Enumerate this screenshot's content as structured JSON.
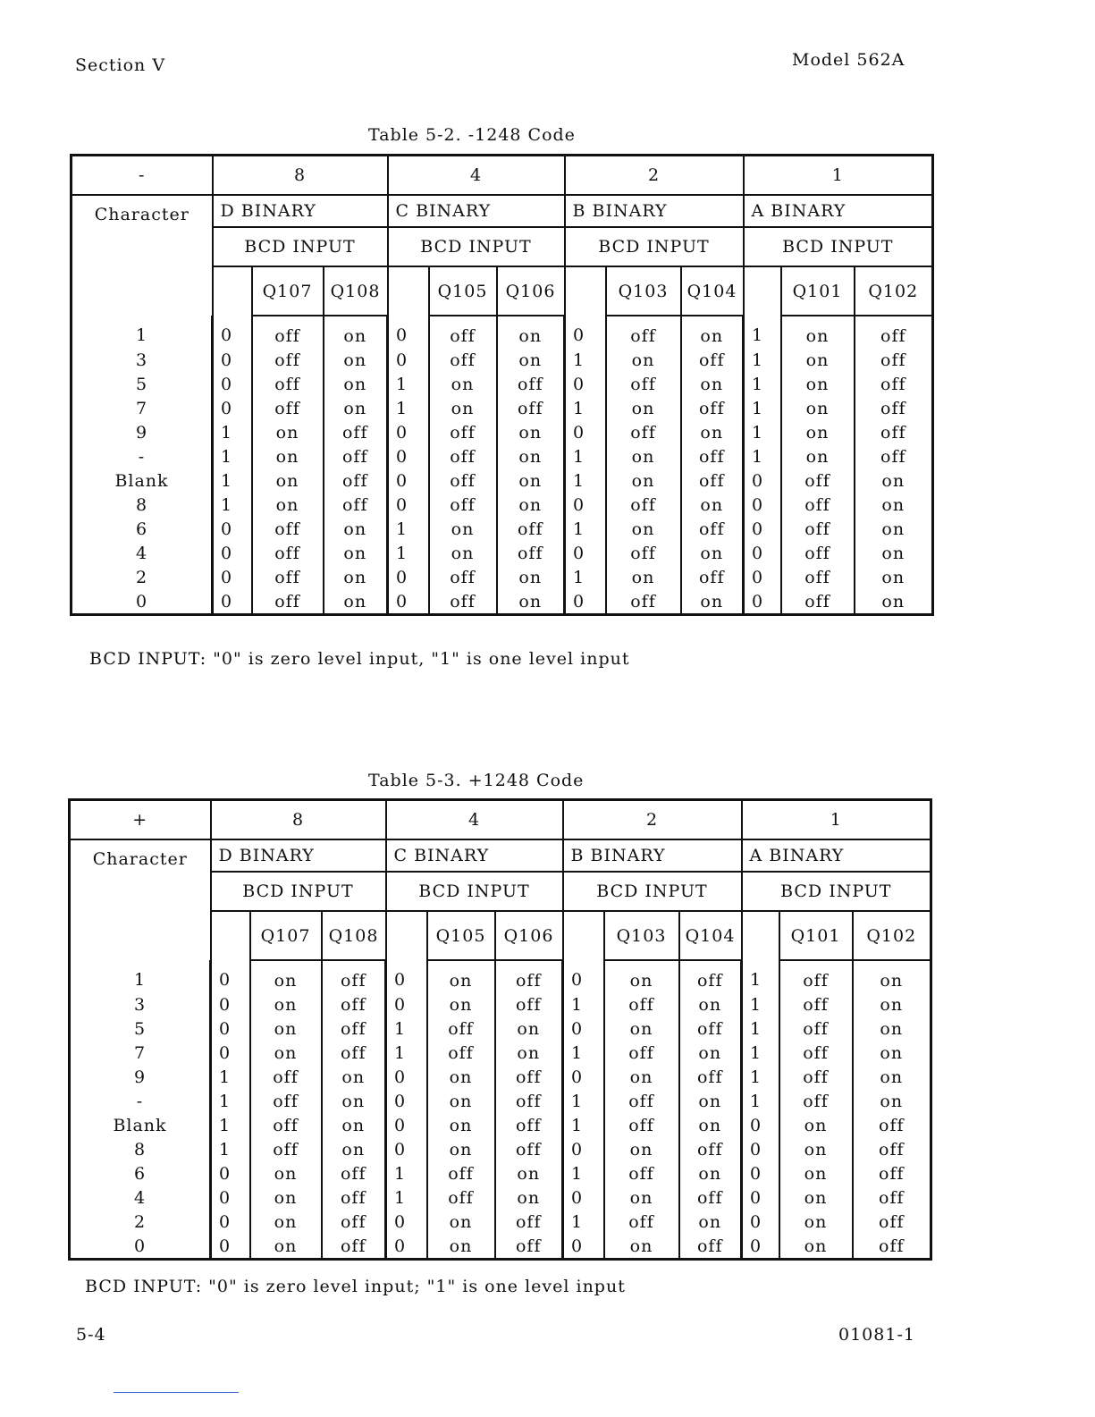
{
  "header": {
    "section": "Section V",
    "model": "Model 562A"
  },
  "footer": {
    "page": "5-4",
    "doc": "01081-1"
  },
  "tables": [
    {
      "title": "Table 5-2.  -1248 Code",
      "sign": "-",
      "weights": [
        "8",
        "4",
        "2",
        "1"
      ],
      "binary": [
        "D BINARY",
        "C BINARY",
        "B BINARY",
        "A BINARY"
      ],
      "bcd": [
        "BCD INPUT",
        "BCD INPUT",
        "BCD INPUT",
        "BCD INPUT"
      ],
      "char_label": "Character",
      "q": [
        [
          "Q107",
          "Q108"
        ],
        [
          "Q105",
          "Q106"
        ],
        [
          "Q103",
          "Q104"
        ],
        [
          "Q101",
          "Q102"
        ]
      ],
      "rows": [
        [
          "1",
          "0",
          "off",
          "on",
          "0",
          "off",
          "on",
          "0",
          "off",
          "on",
          "1",
          "on",
          "off"
        ],
        [
          "3",
          "0",
          "off",
          "on",
          "0",
          "off",
          "on",
          "1",
          "on",
          "off",
          "1",
          "on",
          "off"
        ],
        [
          "5",
          "0",
          "off",
          "on",
          "1",
          "on",
          "off",
          "0",
          "off",
          "on",
          "1",
          "on",
          "off"
        ],
        [
          "7",
          "0",
          "off",
          "on",
          "1",
          "on",
          "off",
          "1",
          "on",
          "off",
          "1",
          "on",
          "off"
        ],
        [
          "9",
          "1",
          "on",
          "off",
          "0",
          "off",
          "on",
          "0",
          "off",
          "on",
          "1",
          "on",
          "off"
        ],
        [
          "-",
          "1",
          "on",
          "off",
          "0",
          "off",
          "on",
          "1",
          "on",
          "off",
          "1",
          "on",
          "off"
        ],
        [
          "Blank",
          "1",
          "on",
          "off",
          "0",
          "off",
          "on",
          "1",
          "on",
          "off",
          "0",
          "off",
          "on"
        ],
        [
          "8",
          "1",
          "on",
          "off",
          "0",
          "off",
          "on",
          "0",
          "off",
          "on",
          "0",
          "off",
          "on"
        ],
        [
          "6",
          "0",
          "off",
          "on",
          "1",
          "on",
          "off",
          "1",
          "on",
          "off",
          "0",
          "off",
          "on"
        ],
        [
          "4",
          "0",
          "off",
          "on",
          "1",
          "on",
          "off",
          "0",
          "off",
          "on",
          "0",
          "off",
          "on"
        ],
        [
          "2",
          "0",
          "off",
          "on",
          "0",
          "off",
          "on",
          "1",
          "on",
          "off",
          "0",
          "off",
          "on"
        ],
        [
          "0",
          "0",
          "off",
          "on",
          "0",
          "off",
          "on",
          "0",
          "off",
          "on",
          "0",
          "off",
          "on"
        ]
      ],
      "note": "BCD INPUT:  \"0\" is zero level input, \"1\" is one level input"
    },
    {
      "title": "Table 5-3.  +1248 Code",
      "sign": "+",
      "weights": [
        "8",
        "4",
        "2",
        "1"
      ],
      "binary": [
        "D BINARY",
        "C BINARY",
        "B BINARY",
        "A BINARY"
      ],
      "bcd": [
        "BCD INPUT",
        "BCD INPUT",
        "BCD INPUT",
        "BCD INPUT"
      ],
      "char_label": "Character",
      "q": [
        [
          "Q107",
          "Q108"
        ],
        [
          "Q105",
          "Q106"
        ],
        [
          "Q103",
          "Q104"
        ],
        [
          "Q101",
          "Q102"
        ]
      ],
      "rows": [
        [
          "1",
          "0",
          "on",
          "off",
          "0",
          "on",
          "off",
          "0",
          "on",
          "off",
          "1",
          "off",
          "on"
        ],
        [
          "3",
          "0",
          "on",
          "off",
          "0",
          "on",
          "off",
          "1",
          "off",
          "on",
          "1",
          "off",
          "on"
        ],
        [
          "5",
          "0",
          "on",
          "off",
          "1",
          "off",
          "on",
          "0",
          "on",
          "off",
          "1",
          "off",
          "on"
        ],
        [
          "7",
          "0",
          "on",
          "off",
          "1",
          "off",
          "on",
          "1",
          "off",
          "on",
          "1",
          "off",
          "on"
        ],
        [
          "9",
          "1",
          "off",
          "on",
          "0",
          "on",
          "off",
          "0",
          "on",
          "off",
          "1",
          "off",
          "on"
        ],
        [
          "-",
          "1",
          "off",
          "on",
          "0",
          "on",
          "off",
          "1",
          "off",
          "on",
          "1",
          "off",
          "on"
        ],
        [
          "Blank",
          "1",
          "off",
          "on",
          "0",
          "on",
          "off",
          "1",
          "off",
          "on",
          "0",
          "on",
          "off"
        ],
        [
          "8",
          "1",
          "off",
          "on",
          "0",
          "on",
          "off",
          "0",
          "on",
          "off",
          "0",
          "on",
          "off"
        ],
        [
          "6",
          "0",
          "on",
          "off",
          "1",
          "off",
          "on",
          "1",
          "off",
          "on",
          "0",
          "on",
          "off"
        ],
        [
          "4",
          "0",
          "on",
          "off",
          "1",
          "off",
          "on",
          "0",
          "on",
          "off",
          "0",
          "on",
          "off"
        ],
        [
          "2",
          "0",
          "on",
          "off",
          "0",
          "on",
          "off",
          "1",
          "off",
          "on",
          "0",
          "on",
          "off"
        ],
        [
          "0",
          "0",
          "on",
          "off",
          "0",
          "on",
          "off",
          "0",
          "on",
          "off",
          "0",
          "on",
          "off"
        ]
      ],
      "note": "BCD INPUT:  \"0\" is zero level input; \"1\" is one level input"
    }
  ]
}
